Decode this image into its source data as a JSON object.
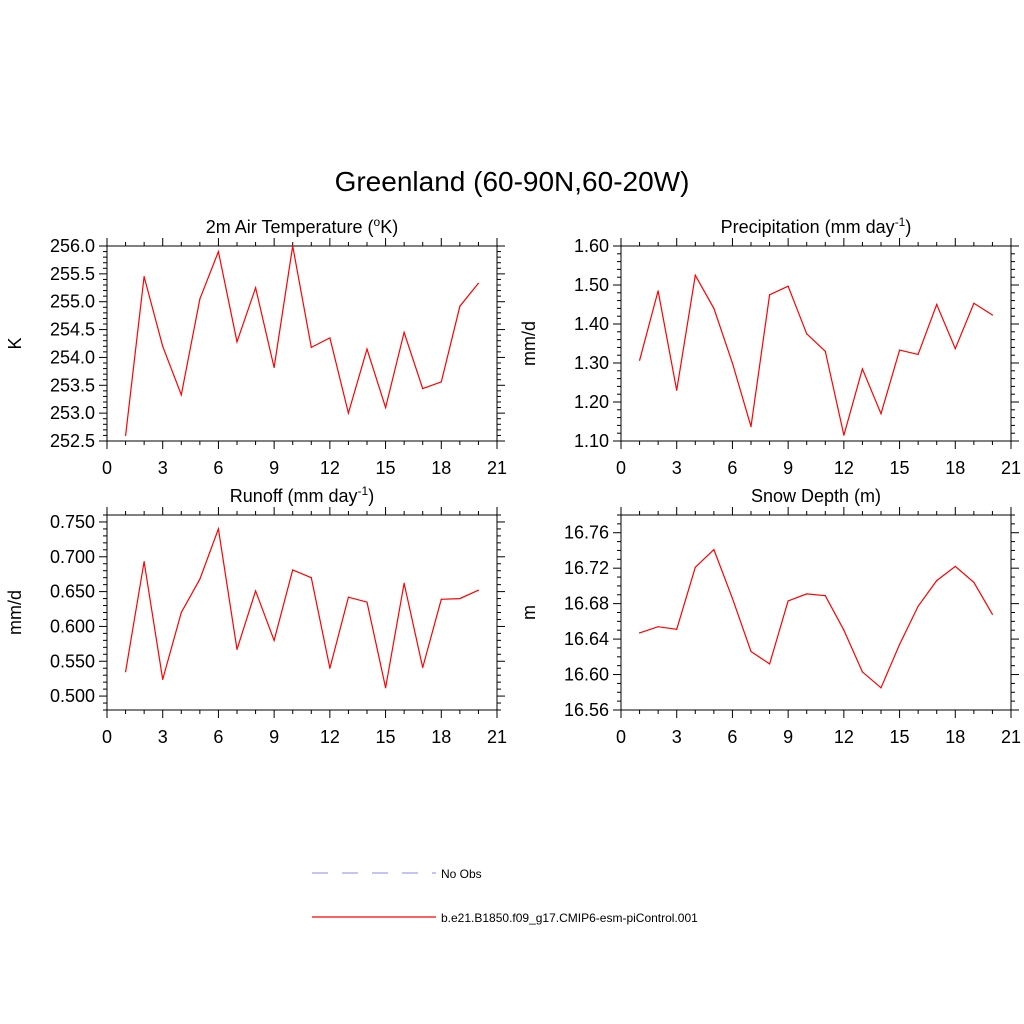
{
  "figure": {
    "title": "Greenland (60-90N,60-20W)"
  },
  "colors": {
    "model_line": "#ff0000",
    "obs_line": "#a0a0f0",
    "axis": "#000000"
  },
  "legend": {
    "placement": "bottom-center",
    "entries": [
      {
        "label": "No Obs",
        "style": "dashed",
        "color": "#a0a0f0"
      },
      {
        "label": "b.e21.B1850.f09_g17.CMIP6-esm-piControl.001",
        "style": "solid",
        "color": "#ff0000"
      }
    ]
  },
  "chart_data": [
    {
      "type": "line",
      "title": "2m Air Temperature (°K)",
      "title_main": "2m Air Temperature (",
      "title_sup": "o",
      "title_tail": "K)",
      "ylabel": "K",
      "xlabel": "",
      "xlim": [
        0,
        21
      ],
      "ylim": [
        252.5,
        256.0
      ],
      "xticks": [
        0,
        3,
        6,
        9,
        12,
        15,
        18,
        21
      ],
      "yticks": [
        252.5,
        253.0,
        253.5,
        254.0,
        254.5,
        255.0,
        255.5,
        256.0
      ],
      "ytick_labels": [
        "252.5",
        "253.0",
        "253.5",
        "254.0",
        "254.5",
        "255.0",
        "255.5",
        "256.0"
      ],
      "yminor_per_major": 4,
      "grid": false,
      "series": [
        {
          "x": [
            1,
            2,
            3,
            4,
            5,
            6,
            7,
            8,
            9,
            10,
            11,
            12,
            13,
            14,
            15,
            16,
            17,
            18,
            19,
            20
          ],
          "values": [
            252.6,
            255.45,
            254.2,
            253.33,
            255.05,
            255.9,
            254.28,
            255.25,
            253.82,
            256.0,
            254.18,
            254.35,
            253.0,
            254.15,
            253.1,
            254.45,
            253.44,
            253.56,
            254.92,
            255.33
          ]
        }
      ]
    },
    {
      "type": "line",
      "title": "Precipitation (mm day-1)",
      "title_main": "Precipitation (mm day",
      "title_sup": "-1",
      "title_tail": ")",
      "ylabel": "mm/d",
      "xlabel": "",
      "xlim": [
        0,
        21
      ],
      "ylim": [
        1.1,
        1.6
      ],
      "xticks": [
        0,
        3,
        6,
        9,
        12,
        15,
        18,
        21
      ],
      "yticks": [
        1.1,
        1.2,
        1.3,
        1.4,
        1.5,
        1.6
      ],
      "ytick_labels": [
        "1.10",
        "1.20",
        "1.30",
        "1.40",
        "1.50",
        "1.60"
      ],
      "yminor_per_major": 4,
      "grid": false,
      "series": [
        {
          "x": [
            1,
            2,
            3,
            4,
            5,
            6,
            7,
            8,
            9,
            10,
            11,
            12,
            13,
            14,
            15,
            16,
            17,
            18,
            19,
            20
          ],
          "values": [
            1.307,
            1.485,
            1.23,
            1.525,
            1.44,
            1.3,
            1.137,
            1.475,
            1.497,
            1.375,
            1.33,
            1.115,
            1.285,
            1.17,
            1.333,
            1.322,
            1.45,
            1.337,
            1.453,
            1.423
          ]
        }
      ]
    },
    {
      "type": "line",
      "title": "Runoff (mm day-1)",
      "title_main": "Runoff (mm day",
      "title_sup": "-1",
      "title_tail": ")",
      "ylabel": "mm/d",
      "xlabel": "",
      "xlim": [
        0,
        21
      ],
      "ylim": [
        0.48,
        0.76
      ],
      "xticks": [
        0,
        3,
        6,
        9,
        12,
        15,
        18,
        21
      ],
      "yticks": [
        0.5,
        0.55,
        0.6,
        0.65,
        0.7,
        0.75
      ],
      "ytick_labels": [
        "0.500",
        "0.550",
        "0.600",
        "0.650",
        "0.700",
        "0.750"
      ],
      "yminor_per_major": 4,
      "grid": false,
      "series": [
        {
          "x": [
            1,
            2,
            3,
            4,
            5,
            6,
            7,
            8,
            9,
            10,
            11,
            12,
            13,
            14,
            15,
            16,
            17,
            18,
            19,
            20
          ],
          "values": [
            0.535,
            0.693,
            0.524,
            0.62,
            0.668,
            0.74,
            0.567,
            0.651,
            0.58,
            0.681,
            0.67,
            0.54,
            0.642,
            0.635,
            0.512,
            0.662,
            0.541,
            0.639,
            0.64,
            0.652
          ]
        }
      ]
    },
    {
      "type": "line",
      "title": "Snow Depth (m)",
      "title_main": "Snow Depth (m)",
      "title_sup": "",
      "title_tail": "",
      "ylabel": "m",
      "xlabel": "",
      "xlim": [
        0,
        21
      ],
      "ylim": [
        16.56,
        16.78
      ],
      "xticks": [
        0,
        3,
        6,
        9,
        12,
        15,
        18,
        21
      ],
      "yticks": [
        16.56,
        16.6,
        16.64,
        16.68,
        16.72,
        16.76
      ],
      "ytick_labels": [
        "16.56",
        "16.60",
        "16.64",
        "16.68",
        "16.72",
        "16.76"
      ],
      "yminor_per_major": 3,
      "grid": false,
      "series": [
        {
          "x": [
            1,
            2,
            3,
            4,
            5,
            6,
            7,
            8,
            9,
            10,
            11,
            12,
            13,
            14,
            15,
            16,
            17,
            18,
            19,
            20
          ],
          "values": [
            16.647,
            16.654,
            16.651,
            16.721,
            16.741,
            16.686,
            16.626,
            16.612,
            16.683,
            16.691,
            16.689,
            16.65,
            16.603,
            16.585,
            16.634,
            16.677,
            16.706,
            16.722,
            16.704,
            16.668
          ]
        }
      ]
    }
  ]
}
